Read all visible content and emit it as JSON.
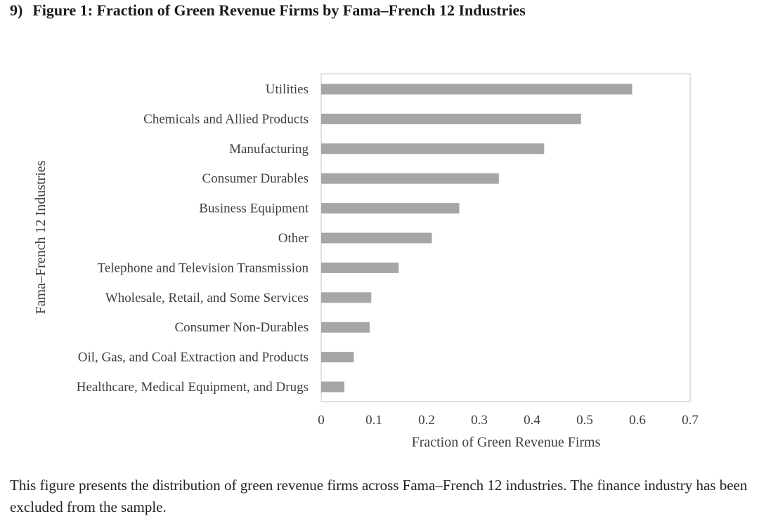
{
  "heading": {
    "number": "9)",
    "title": "Figure 1: Fraction of Green Revenue Firms by Fama–French 12 Industries"
  },
  "caption": "This figure presents the distribution of green revenue firms across Fama–French 12 industries. The finance industry has been excluded from the sample.",
  "colors": {
    "bar": "#a6a6a6",
    "frame": "#d9d9d9",
    "text": "#404040"
  },
  "chart_data": {
    "type": "bar",
    "orientation": "horizontal",
    "title": "",
    "xlabel": "Fraction of Green Revenue Firms",
    "ylabel": "Fama–French 12 Industries",
    "xlim": [
      0,
      0.7
    ],
    "xticks": [
      "0",
      "0.1",
      "0.2",
      "0.3",
      "0.4",
      "0.5",
      "0.6",
      "0.7"
    ],
    "grid": false,
    "legend": "none",
    "categories": [
      "Utilities",
      "Chemicals and Allied Products",
      "Manufacturing",
      "Consumer Durables",
      "Business Equipment",
      "Other",
      "Telephone and Television Transmission",
      "Wholesale, Retail, and Some Services",
      "Consumer Non-Durables",
      "Oil, Gas, and Coal Extraction and Products",
      "Healthcare, Medical Equipment, and Drugs"
    ],
    "values": [
      0.59,
      0.493,
      0.423,
      0.337,
      0.262,
      0.21,
      0.147,
      0.095,
      0.092,
      0.062,
      0.044
    ]
  }
}
